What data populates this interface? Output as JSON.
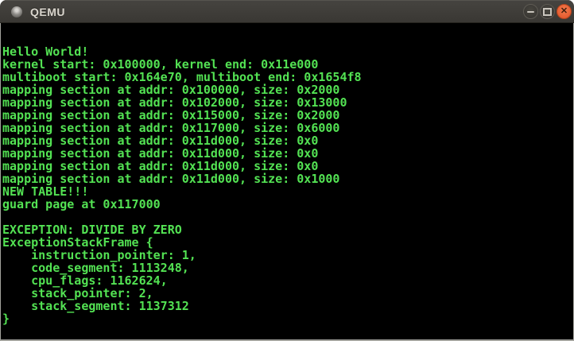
{
  "window": {
    "title": "QEMU",
    "icons": {
      "app": "gray-disc",
      "minimize": "dash-shape",
      "maximize": "square-outline-shape",
      "close": "✕"
    }
  },
  "colors": {
    "titlebar_bg": "#3d3b37",
    "titlebar_text": "#dad6ce",
    "close_button_orange": "#e55c30",
    "window_button_fill": "#3f3d39",
    "frame_border": "#a2a29d",
    "terminal_bg": "#000000",
    "terminal_green": "#53e253"
  },
  "terminal": {
    "lines": [
      "Hello World!",
      "kernel start: 0x100000, kernel end: 0x11e000",
      "multiboot start: 0x164e70, multiboot end: 0x1654f8",
      "mapping section at addr: 0x100000, size: 0x2000",
      "mapping section at addr: 0x102000, size: 0x13000",
      "mapping section at addr: 0x115000, size: 0x2000",
      "mapping section at addr: 0x117000, size: 0x6000",
      "mapping section at addr: 0x11d000, size: 0x0",
      "mapping section at addr: 0x11d000, size: 0x0",
      "mapping section at addr: 0x11d000, size: 0x0",
      "mapping section at addr: 0x11d000, size: 0x1000",
      "NEW TABLE!!!",
      "guard page at 0x117000",
      "",
      "EXCEPTION: DIVIDE BY ZERO",
      "ExceptionStackFrame {",
      "    instruction_pointer: 1,",
      "    code_segment: 1113248,",
      "    cpu_flags: 1162624,",
      "    stack_pointer: 2,",
      "    stack_segment: 1137312",
      "}"
    ]
  }
}
